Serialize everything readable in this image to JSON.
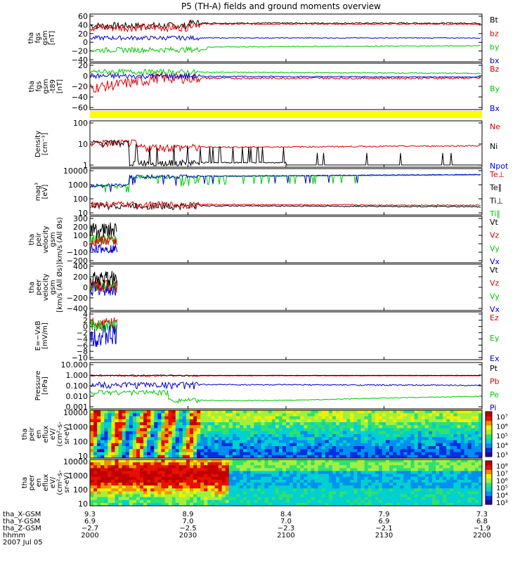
{
  "title": "P5 (TH-A) fields and ground moments overview",
  "colors": {
    "black": "#000000",
    "red": "#e00000",
    "green": "#00c800",
    "blue": "#0000d0",
    "yellow": "#ffff00",
    "axis": "#000000"
  },
  "panels": [
    {
      "id": "fgs_gsm",
      "ylabel": [
        "tha",
        "fgs",
        "gsm",
        "[nT]"
      ],
      "yticks": [
        "60",
        "40",
        "20",
        "0",
        "−20",
        "−40"
      ],
      "legend": [
        {
          "text": "Bt",
          "color": "black"
        },
        {
          "text": "bz",
          "color": "red"
        },
        {
          "text": "by",
          "color": "green"
        },
        {
          "text": "bx",
          "color": "blue"
        }
      ]
    },
    {
      "id": "fgs_dsl",
      "ylabel": [
        "tha",
        "fgs",
        "gsm",
        "-t89",
        "[nT]"
      ],
      "yticks": [
        "20",
        "0",
        "−20",
        "−40",
        "−60"
      ],
      "legend": [
        {
          "text": "Bz",
          "color": "red"
        },
        {
          "text": "By",
          "color": "green"
        },
        {
          "text": "Bx",
          "color": "blue"
        }
      ]
    },
    {
      "id": "flag",
      "ylabel": [],
      "yticks": [],
      "legend": []
    },
    {
      "id": "density",
      "ylabel": [
        "Density",
        "[cm⁻³]"
      ],
      "yticks": [
        "100",
        "10",
        "1"
      ],
      "legend": [
        {
          "text": "Ne",
          "color": "red"
        },
        {
          "text": "Ni",
          "color": "black"
        },
        {
          "text": "Npot",
          "color": "blue"
        }
      ]
    },
    {
      "id": "temp",
      "ylabel": [
        "mag³",
        "[eV]"
      ],
      "yticks": [
        "10000",
        "1000",
        "100",
        "10"
      ],
      "legend": [
        {
          "text": "Te⊥",
          "color": "red"
        },
        {
          "text": "Te∥",
          "color": "black"
        },
        {
          "text": "Ti⊥",
          "color": "black"
        },
        {
          "text": "Ti∥",
          "color": "green"
        }
      ]
    },
    {
      "id": "peir_vel",
      "ylabel": [
        "tha",
        "peir",
        "velocity",
        "gsm",
        "km/s (All Øs)"
      ],
      "yticks": [
        "300",
        "200",
        "100",
        "0",
        "−100",
        "−200"
      ],
      "legend": [
        {
          "text": "Vt",
          "color": "black"
        },
        {
          "text": "Vz",
          "color": "red"
        },
        {
          "text": "Vy",
          "color": "green"
        },
        {
          "text": "Vx",
          "color": "blue"
        }
      ]
    },
    {
      "id": "peer_vel",
      "ylabel": [
        "tha",
        "peer",
        "velocity",
        "gsm",
        "[km/s (All Øs)]"
      ],
      "yticks": [
        "400",
        "200",
        "0",
        "−200",
        "−400"
      ],
      "legend": [
        {
          "text": "Vt",
          "color": "black"
        },
        {
          "text": "Vz",
          "color": "red"
        },
        {
          "text": "Vy",
          "color": "green"
        },
        {
          "text": "Vx",
          "color": "blue"
        }
      ]
    },
    {
      "id": "efield",
      "ylabel": [
        "E=−VxB",
        "[mV/m]"
      ],
      "yticks": [
        "4",
        "2",
        "0",
        "−2",
        "−4",
        "−6",
        "−8",
        "−10"
      ],
      "legend": [
        {
          "text": "Ez",
          "color": "red"
        },
        {
          "text": "Ey",
          "color": "green"
        },
        {
          "text": "Ex",
          "color": "blue"
        }
      ]
    },
    {
      "id": "pressure",
      "ylabel": [
        "Pressure",
        "[nPa]"
      ],
      "yticks": [
        "10.000",
        "1.000",
        "0.100",
        "0.010",
        "0.001"
      ],
      "legend": [
        {
          "text": "Pt",
          "color": "black"
        },
        {
          "text": "Pb",
          "color": "red"
        },
        {
          "text": "Pe",
          "color": "green"
        },
        {
          "text": "Pi",
          "color": "blue"
        }
      ]
    },
    {
      "id": "ion_spec",
      "ylabel": [
        "tha",
        "peir",
        "en",
        "eflux",
        "eV/",
        "(cm²-s-",
        "sr-eV)"
      ],
      "yticks": [
        "10000",
        "1000",
        "100",
        "10"
      ],
      "cbar": [
        "10⁷",
        "10⁶",
        "10⁵",
        "10⁴",
        "10³"
      ]
    },
    {
      "id": "elec_spec",
      "ylabel": [
        "tha",
        "peer",
        "en",
        "eflux",
        "eV/",
        "(cm²-s-",
        "sr-eV)"
      ],
      "yticks": [
        "10000",
        "1000",
        "100",
        "10"
      ],
      "cbar": [
        "10⁸",
        "10⁷",
        "10⁶",
        "10⁵",
        "10⁴",
        "10³"
      ]
    }
  ],
  "xaxis": {
    "row_labels": [
      "tha_X-GSM",
      "tha_Y-GSM",
      "tha_Z-GSM",
      "hhmm",
      "2007 Jul 05"
    ],
    "ticks": [
      {
        "x": "9.3",
        "y": "6.9",
        "z": "−2.7",
        "t": "2000"
      },
      {
        "x": "8.9",
        "y": "7.0",
        "z": "−2.5",
        "t": "2030"
      },
      {
        "x": "8.4",
        "y": "7.0",
        "z": "−2.3",
        "t": "2100"
      },
      {
        "x": "7.9",
        "y": "6.9",
        "z": "−2.1",
        "t": "2130"
      },
      {
        "x": "7.3",
        "y": "6.8",
        "z": "−1.9",
        "t": "2200"
      }
    ]
  },
  "chart_data": [
    {
      "type": "line",
      "title": "tha fgs gsm",
      "xlabel": "hhmm",
      "x": [
        "2000",
        "2030",
        "2100",
        "2130",
        "2200"
      ],
      "ylim": [
        -40,
        60
      ],
      "series": [
        {
          "name": "Bt",
          "values": [
            40,
            44,
            44,
            44,
            44
          ]
        },
        {
          "name": "bz",
          "values": [
            33,
            42,
            42,
            43,
            43
          ]
        },
        {
          "name": "by",
          "values": [
            -18,
            -10,
            -12,
            -14,
            -10
          ]
        },
        {
          "name": "bx",
          "values": [
            12,
            10,
            10,
            10,
            10
          ]
        }
      ]
    },
    {
      "type": "line",
      "title": "tha fgs gsm -t89",
      "x": [
        "2000",
        "2030",
        "2100",
        "2130",
        "2200"
      ],
      "ylim": [
        -60,
        20
      ],
      "series": [
        {
          "name": "Bz",
          "values": [
            -20,
            -6,
            -5,
            -4,
            -5
          ]
        },
        {
          "name": "By",
          "values": [
            7,
            6,
            5,
            3,
            4
          ]
        },
        {
          "name": "Bx",
          "values": [
            3,
            -2,
            -3,
            -4,
            -2
          ]
        }
      ]
    },
    {
      "type": "line",
      "title": "Density",
      "ylabel": "[cm^-3]",
      "x": [
        "2000",
        "2030",
        "2100",
        "2130",
        "2200"
      ],
      "ylim": [
        0.1,
        100
      ],
      "series": [
        {
          "name": "Ne",
          "values": [
            6,
            2,
            1,
            3,
            3
          ]
        },
        {
          "name": "Ni",
          "values": [
            6,
            0.2,
            0.25,
            0.15,
            0.15
          ]
        },
        {
          "name": "Npot",
          "values": [
            null,
            null,
            null,
            null,
            null
          ]
        }
      ]
    },
    {
      "type": "line",
      "title": "mag3 [eV]",
      "x": [
        "2000",
        "2030",
        "2100",
        "2130",
        "2200"
      ],
      "ylim": [
        10,
        10000
      ],
      "series": [
        {
          "name": "Te⊥",
          "values": [
            50,
            50,
            40,
            40,
            40
          ]
        },
        {
          "name": "Te∥",
          "values": [
            40,
            45,
            35,
            35,
            30
          ]
        },
        {
          "name": "Ti⊥",
          "values": [
            800,
            2500,
            3000,
            3500,
            4000
          ]
        },
        {
          "name": "Ti∥",
          "values": [
            600,
            2000,
            2500,
            3000,
            3500
          ]
        }
      ]
    },
    {
      "type": "line",
      "title": "tha peir velocity gsm",
      "x": [
        "2000",
        "2030"
      ],
      "ylim": [
        -200,
        300
      ],
      "series": [
        {
          "name": "Vt",
          "values": [
            150,
            null
          ]
        },
        {
          "name": "Vz",
          "values": [
            20,
            null
          ]
        },
        {
          "name": "Vy",
          "values": [
            50,
            null
          ]
        },
        {
          "name": "Vx",
          "values": [
            -50,
            null
          ]
        }
      ]
    },
    {
      "type": "line",
      "title": "tha peer velocity gsm",
      "x": [
        "2000",
        "2030"
      ],
      "ylim": [
        -400,
        400
      ],
      "series": [
        {
          "name": "Vt",
          "values": [
            150,
            null
          ]
        },
        {
          "name": "Vz",
          "values": [
            50,
            null
          ]
        },
        {
          "name": "Vy",
          "values": [
            20,
            null
          ]
        },
        {
          "name": "Vx",
          "values": [
            -50,
            null
          ]
        }
      ]
    },
    {
      "type": "line",
      "title": "E=-VxB",
      "ylabel": "[mV/m]",
      "x": [
        "2000",
        "2030"
      ],
      "ylim": [
        -10,
        4
      ],
      "series": [
        {
          "name": "Ez",
          "values": [
            1,
            null
          ]
        },
        {
          "name": "Ey",
          "values": [
            0,
            null
          ]
        },
        {
          "name": "Ex",
          "values": [
            -3,
            null
          ]
        }
      ]
    },
    {
      "type": "line",
      "title": "Pressure",
      "ylabel": "[nPa]",
      "x": [
        "2000",
        "2030",
        "2100",
        "2130",
        "2200"
      ],
      "ylim": [
        0.001,
        10
      ],
      "series": [
        {
          "name": "Pt",
          "values": [
            0.9,
            0.9,
            0.9,
            0.9,
            0.9
          ]
        },
        {
          "name": "Pb",
          "values": [
            0.85,
            0.9,
            0.9,
            0.9,
            0.9
          ]
        },
        {
          "name": "Pe",
          "values": [
            0.02,
            0.012,
            0.006,
            0.008,
            0.008
          ]
        },
        {
          "name": "Pi",
          "values": [
            0.2,
            0.15,
            0.15,
            0.12,
            0.12
          ]
        }
      ]
    },
    {
      "type": "heatmap",
      "title": "tha peir en eflux",
      "ylim": [
        10,
        10000
      ]
    },
    {
      "type": "heatmap",
      "title": "tha peer en eflux",
      "ylim": [
        10,
        10000
      ]
    }
  ]
}
